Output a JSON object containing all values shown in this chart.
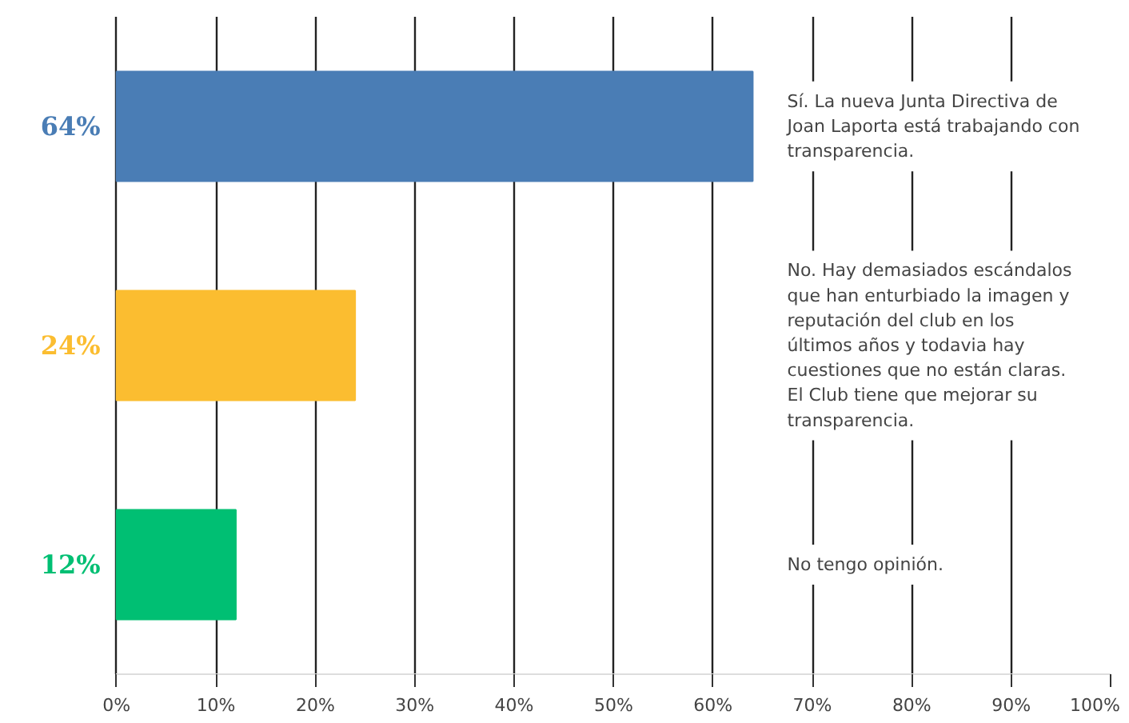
{
  "chart_data": {
    "type": "bar",
    "orientation": "horizontal",
    "categories": [
      "Sí. La nueva Junta Directiva de Joan Laporta está trabajando con transparencia.",
      "No. Hay demasiados escándalos que han enturbiado la imagen y reputación del club en los últimos años y todavia hay cuestiones que no están claras. El Club tiene que mejorar su transparencia.",
      "No tengo opinión."
    ],
    "values": [
      64,
      24,
      12
    ],
    "colors": [
      "#4a7db5",
      "#fbbd30",
      "#00bf73"
    ],
    "value_labels": [
      "64%",
      "24%",
      "12%"
    ],
    "xlim": [
      0,
      100
    ],
    "xticks": [
      {
        "value": 0,
        "label": "0%"
      },
      {
        "value": 10,
        "label": "10%"
      },
      {
        "value": 20,
        "label": "20%"
      },
      {
        "value": 30,
        "label": "30%"
      },
      {
        "value": 40,
        "label": "40%"
      },
      {
        "value": 50,
        "label": "50%"
      },
      {
        "value": 60,
        "label": "60%"
      },
      {
        "value": 70,
        "label": "70%"
      },
      {
        "value": 80,
        "label": "80%"
      },
      {
        "value": 90,
        "label": "90%"
      },
      {
        "value": 100,
        "label": "100%"
      }
    ],
    "grid": "x",
    "legend": false
  }
}
